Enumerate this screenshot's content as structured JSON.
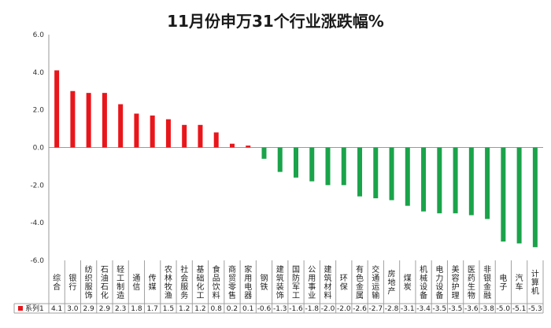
{
  "chart_data": {
    "type": "bar",
    "title": "11月份申万31个行业涨跌幅%",
    "categories": [
      "综合",
      "银行",
      "纺织服饰",
      "石油石化",
      "轻工制造",
      "通信",
      "传媒",
      "农林牧渔",
      "社会服务",
      "基础化工",
      "食品饮料",
      "商贸零售",
      "家用电器",
      "钢铁",
      "建筑装饰",
      "国防军工",
      "公用事业",
      "建筑材料",
      "环保",
      "有色金属",
      "交通运输",
      "房地产",
      "煤炭",
      "机械设备",
      "电力设备",
      "美容护理",
      "医药生物",
      "非银金融",
      "电子",
      "汽车",
      "计算机"
    ],
    "series": [
      {
        "name": "系列1",
        "values": [
          4.1,
          3.0,
          2.9,
          2.9,
          2.3,
          1.8,
          1.7,
          1.5,
          1.2,
          1.2,
          0.8,
          0.2,
          0.1,
          -0.6,
          -1.3,
          -1.6,
          -1.8,
          -2.0,
          -2.0,
          -2.6,
          -2.7,
          -2.8,
          -3.1,
          -3.4,
          -3.5,
          -3.5,
          -3.6,
          -3.8,
          -5.0,
          -5.1,
          -5.3
        ]
      }
    ],
    "value_labels": [
      "4.1",
      "3.0",
      "2.9",
      "2.9",
      "2.3",
      "1.8",
      "1.7",
      "1.5",
      "1.2",
      "1.2",
      "0.8",
      "0.2",
      "0.1",
      "-0.6",
      "-1.3",
      "-1.6",
      "-1.8",
      "-2.0",
      "-2.0",
      "-2.6",
      "-2.7",
      "-2.8",
      "-3.1",
      "-3.4",
      "-3.5",
      "-3.5",
      "-3.6",
      "-3.8",
      "-5.0",
      "-5.1",
      "-5.3"
    ],
    "yticks": [
      "6.0",
      "4.0",
      "2.0",
      "0.0",
      "-2.0",
      "-4.0",
      "-6.0"
    ],
    "ylim": [
      -6,
      6
    ],
    "grid": false,
    "legend": "bottom-left data table",
    "colors": {
      "positive": "#e8161b",
      "negative": "#1aa34a",
      "legend_marker": "#e8161b"
    }
  }
}
